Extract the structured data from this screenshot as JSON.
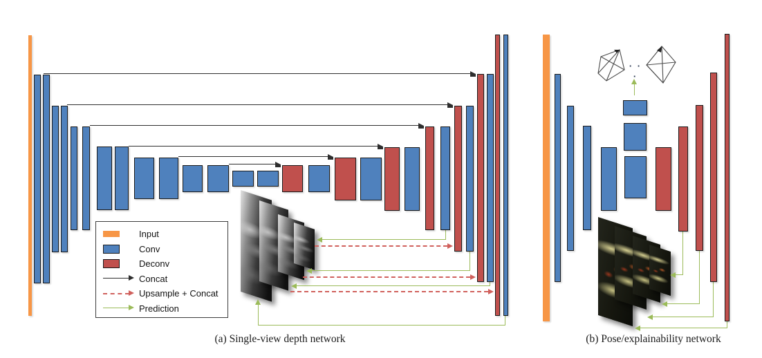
{
  "figure": {
    "panels": [
      {
        "id": "a",
        "caption": "(a) Single-view depth network"
      },
      {
        "id": "b",
        "caption": "(b) Pose/explainability network"
      }
    ]
  },
  "legend": {
    "items": [
      {
        "marker": "swatch",
        "key": "input",
        "label": "Input"
      },
      {
        "marker": "swatch",
        "key": "conv",
        "label": "Conv"
      },
      {
        "marker": "swatch",
        "key": "deconv",
        "label": "Deconv"
      },
      {
        "marker": "arrow-solid-black",
        "key": "concat",
        "label": "Concat"
      },
      {
        "marker": "arrow-dashed-red",
        "key": "upsample_concat",
        "label": "Upsample + Concat"
      },
      {
        "marker": "arrow-solid-green",
        "key": "prediction",
        "label": "Prediction"
      }
    ]
  },
  "palette": {
    "background": "#FFFFFF",
    "input": "#F79646",
    "conv": "#4F81BD",
    "deconv": "#C0504D",
    "concat": "#2E2E2E",
    "upsample_concat": "#D0605C",
    "prediction": "#9BBB59",
    "bar_border": "#1A1A1A"
  },
  "decorations": {
    "pose_ellipsis": "· · ·"
  }
}
